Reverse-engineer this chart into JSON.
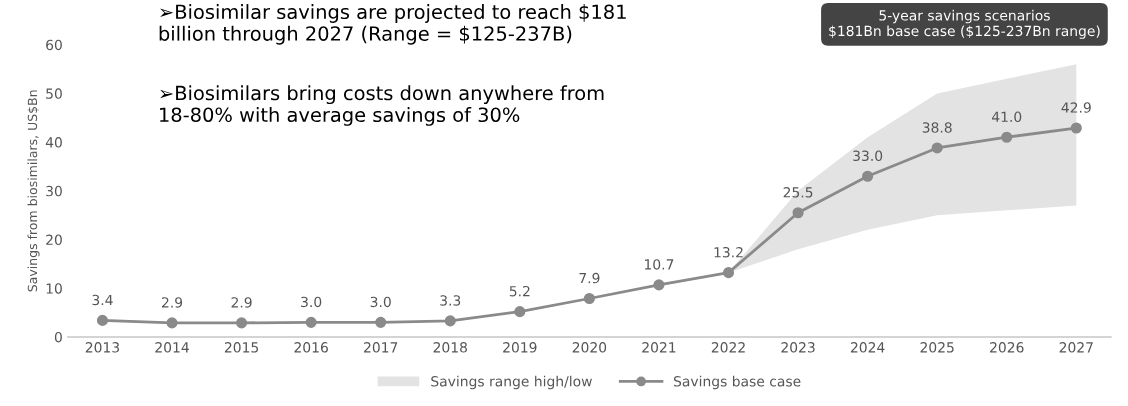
{
  "chart_data": {
    "type": "line",
    "ylabel": "Savings from biosimilars, US$Bn",
    "categories": [
      "2013",
      "2014",
      "2015",
      "2016",
      "2017",
      "2018",
      "2019",
      "2020",
      "2021",
      "2022",
      "2023",
      "2024",
      "2025",
      "2026",
      "2027"
    ],
    "series": [
      {
        "name": "Savings range high/low",
        "type": "area",
        "color": "#e3e3e3",
        "values": [
          null,
          null,
          null,
          null,
          null,
          null,
          null,
          null,
          null,
          null,
          null,
          null,
          null,
          null,
          null
        ]
      },
      {
        "name": "Savings base case",
        "color": "#8a8a8a",
        "marker": "circle",
        "values": [
          3.4,
          2.9,
          2.9,
          3.0,
          3.0,
          3.3,
          5.2,
          7.9,
          10.7,
          13.2,
          25.5,
          33.0,
          38.8,
          41.0,
          42.9
        ],
        "value_labels": [
          "3.4",
          "2.9",
          "2.9",
          "3.0",
          "3.0",
          "3.3",
          "5.2",
          "7.9",
          "10.7",
          "13.2",
          "25.5",
          "33.0",
          "38.8",
          "41.0",
          "42.9"
        ],
        "lower": [
          null,
          null,
          null,
          null,
          null,
          null,
          null,
          null,
          null,
          13.2,
          18,
          22,
          25,
          26,
          27
        ],
        "upper": [
          null,
          null,
          null,
          null,
          null,
          null,
          null,
          null,
          null,
          13.2,
          30,
          41,
          50,
          53,
          56
        ]
      }
    ],
    "ylim": [
      0,
      60
    ],
    "yticks": [
      0,
      10,
      20,
      30,
      40,
      50,
      60
    ],
    "grid": false,
    "legend": "bottom",
    "line_style": "solid",
    "data_labels": true,
    "annotations": [
      "➢Biosimilar savings are projected to reach $181\nbillion through 2027 (Range = $125-237B)",
      "➢Biosimilars bring costs down anywhere from\n18-80% with average savings of 30%",
      "5-year savings scenarios\n$181Bn base case ($125-237Bn range)"
    ]
  }
}
